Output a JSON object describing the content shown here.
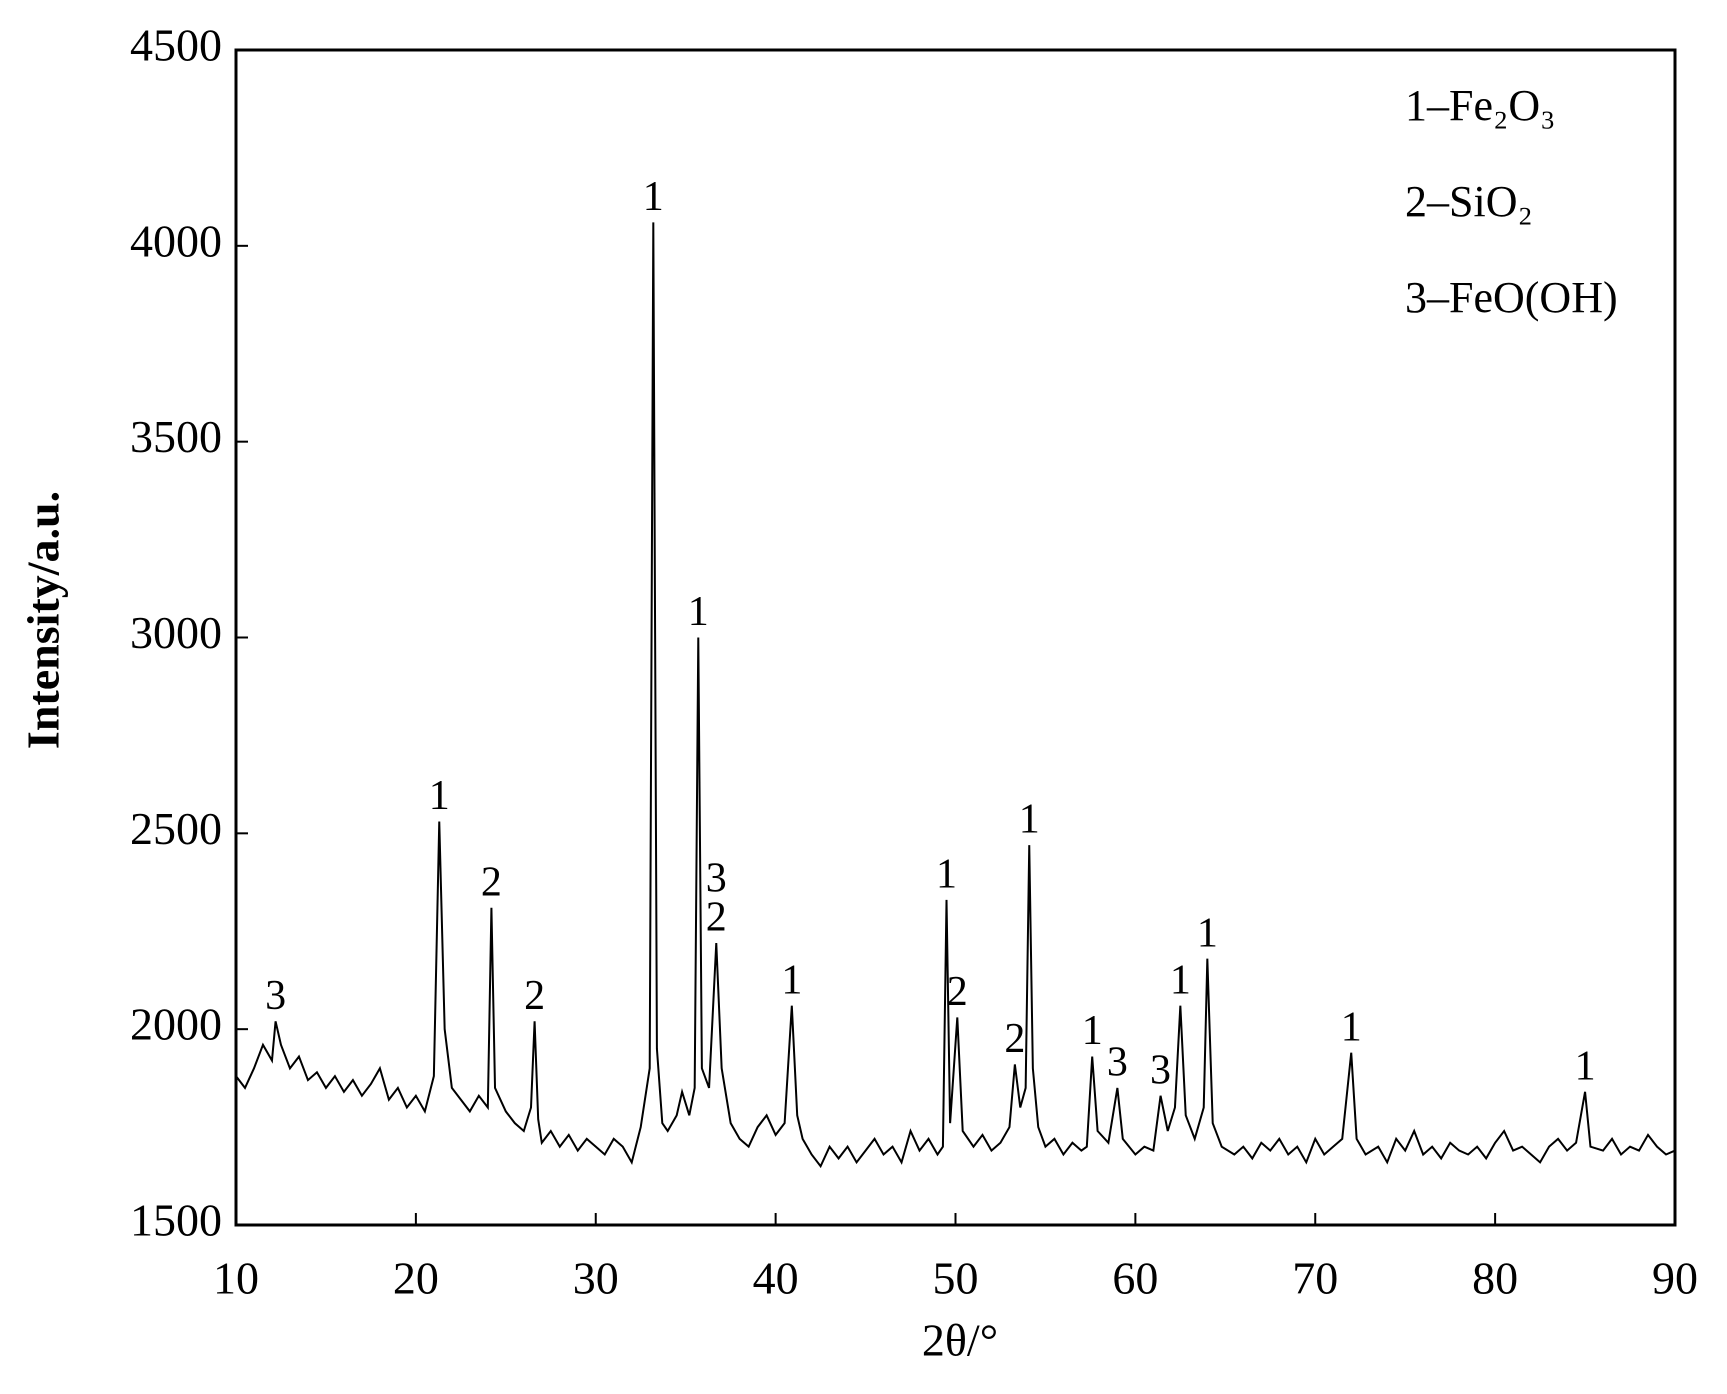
{
  "chart_data": {
    "type": "line",
    "xlabel": "2θ/°",
    "ylabel": "Intensity/a.u.",
    "xlim": [
      10,
      90
    ],
    "xticks": [
      10,
      20,
      30,
      40,
      50,
      60,
      70,
      80,
      90
    ],
    "ylim": [
      1500,
      4500
    ],
    "yticks": [
      1500,
      2000,
      2500,
      3000,
      3500,
      4000,
      4500
    ],
    "color": "#000000",
    "legend": [
      "1–Fe₂O₃",
      "2–SiO₂",
      "3–FeO(OH)"
    ],
    "legend_position": "upper right",
    "x": [
      10,
      10.5,
      11,
      11.5,
      12,
      12.2,
      12.5,
      13,
      13.5,
      14,
      14.5,
      15,
      15.5,
      16,
      16.5,
      17,
      17.5,
      18,
      18.5,
      19,
      19.5,
      20,
      20.5,
      21,
      21.3,
      21.6,
      22,
      22.5,
      23,
      23.5,
      24,
      24.2,
      24.4,
      25,
      25.5,
      26,
      26.4,
      26.6,
      26.8,
      27,
      27.5,
      28,
      28.5,
      29,
      29.5,
      30,
      30.5,
      31,
      31.5,
      32,
      32.5,
      33,
      33.2,
      33.4,
      33.7,
      34,
      34.5,
      34.8,
      35.2,
      35.5,
      35.7,
      35.9,
      36.3,
      36.7,
      37,
      37.5,
      38,
      38.5,
      39,
      39.5,
      40,
      40.5,
      40.9,
      41.2,
      41.5,
      42,
      42.5,
      43,
      43.5,
      44,
      44.5,
      45,
      45.5,
      46,
      46.5,
      47,
      47.5,
      48,
      48.5,
      49,
      49.3,
      49.5,
      49.7,
      50.1,
      50.4,
      51,
      51.5,
      52,
      52.5,
      53,
      53.3,
      53.6,
      53.9,
      54.1,
      54.3,
      54.6,
      55,
      55.5,
      56,
      56.5,
      57,
      57.3,
      57.6,
      57.9,
      58.5,
      59,
      59.3,
      60,
      60.5,
      61,
      61.4,
      61.8,
      62.2,
      62.5,
      62.8,
      63.3,
      63.8,
      64,
      64.3,
      64.8,
      65.5,
      66,
      66.5,
      67,
      67.5,
      68,
      68.5,
      69,
      69.5,
      70,
      70.5,
      71,
      71.5,
      72,
      72.3,
      72.8,
      73.5,
      74,
      74.5,
      75,
      75.5,
      76,
      76.5,
      77,
      77.5,
      78,
      78.5,
      79,
      79.5,
      80,
      80.5,
      81,
      81.5,
      82,
      82.5,
      83,
      83.5,
      84,
      84.5,
      85,
      85.3,
      86,
      86.5,
      87,
      87.5,
      88,
      88.5,
      89,
      89.5,
      90
    ],
    "values": [
      1880,
      1850,
      1900,
      1960,
      1920,
      2020,
      1960,
      1900,
      1930,
      1870,
      1890,
      1850,
      1880,
      1840,
      1870,
      1830,
      1860,
      1900,
      1820,
      1850,
      1800,
      1830,
      1790,
      1880,
      2530,
      2000,
      1850,
      1820,
      1790,
      1830,
      1800,
      2310,
      1850,
      1790,
      1760,
      1740,
      1800,
      2020,
      1770,
      1710,
      1740,
      1700,
      1730,
      1690,
      1720,
      1700,
      1680,
      1720,
      1700,
      1660,
      1750,
      1900,
      4060,
      1950,
      1760,
      1740,
      1780,
      1840,
      1780,
      1850,
      3000,
      1900,
      1850,
      2220,
      1900,
      1760,
      1720,
      1700,
      1750,
      1780,
      1730,
      1760,
      2060,
      1780,
      1720,
      1680,
      1650,
      1700,
      1670,
      1700,
      1660,
      1690,
      1720,
      1680,
      1700,
      1660,
      1740,
      1690,
      1720,
      1680,
      1700,
      2330,
      1760,
      2030,
      1740,
      1700,
      1730,
      1690,
      1710,
      1750,
      1910,
      1800,
      1850,
      2470,
      1900,
      1750,
      1700,
      1720,
      1680,
      1710,
      1690,
      1700,
      1930,
      1740,
      1710,
      1850,
      1720,
      1680,
      1700,
      1690,
      1830,
      1740,
      1800,
      2060,
      1780,
      1720,
      1800,
      2180,
      1760,
      1700,
      1680,
      1700,
      1670,
      1710,
      1690,
      1720,
      1680,
      1700,
      1660,
      1720,
      1680,
      1700,
      1720,
      1940,
      1720,
      1680,
      1700,
      1660,
      1720,
      1690,
      1740,
      1680,
      1700,
      1670,
      1710,
      1690,
      1680,
      1700,
      1670,
      1710,
      1740,
      1690,
      1700,
      1680,
      1660,
      1700,
      1720,
      1690,
      1710,
      1840,
      1700,
      1690,
      1720,
      1680,
      1700,
      1690,
      1730,
      1700,
      1680,
      1690
    ],
    "annotations": [
      {
        "text": "3",
        "x": 12.2,
        "y": 2020
      },
      {
        "text": "1",
        "x": 21.3,
        "y": 2530
      },
      {
        "text": "2",
        "x": 24.2,
        "y": 2310
      },
      {
        "text": "2",
        "x": 26.6,
        "y": 2020
      },
      {
        "text": "1",
        "x": 33.2,
        "y": 4060
      },
      {
        "text": "1",
        "x": 35.7,
        "y": 3000
      },
      {
        "text": "2",
        "x": 36.7,
        "y": 2220
      },
      {
        "text": "3",
        "x": 36.7,
        "y": 2320
      },
      {
        "text": "1",
        "x": 40.9,
        "y": 2060
      },
      {
        "text": "1",
        "x": 49.5,
        "y": 2330
      },
      {
        "text": "2",
        "x": 50.1,
        "y": 2030
      },
      {
        "text": "2",
        "x": 53.3,
        "y": 1910
      },
      {
        "text": "1",
        "x": 54.1,
        "y": 2470
      },
      {
        "text": "1",
        "x": 57.6,
        "y": 1930
      },
      {
        "text": "3",
        "x": 59.0,
        "y": 1850
      },
      {
        "text": "3",
        "x": 61.4,
        "y": 1830
      },
      {
        "text": "1",
        "x": 62.5,
        "y": 2060
      },
      {
        "text": "1",
        "x": 64.0,
        "y": 2180
      },
      {
        "text": "1",
        "x": 72.0,
        "y": 1940
      },
      {
        "text": "1",
        "x": 85.0,
        "y": 1840
      }
    ]
  }
}
